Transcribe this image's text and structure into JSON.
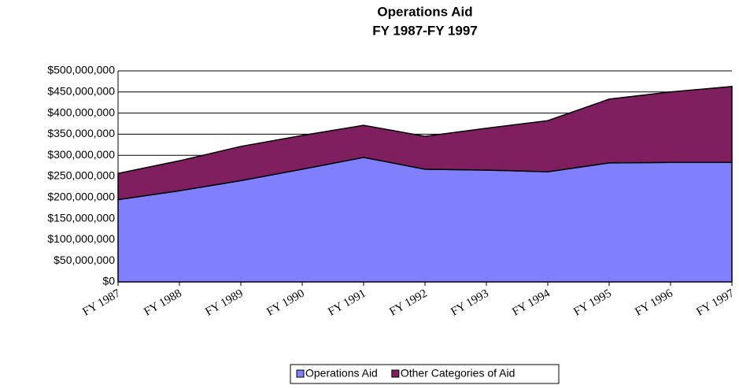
{
  "chart_data": {
    "type": "stacked_area",
    "title": "Operations Aid",
    "subtitle": "FY 1987-FY 1997",
    "categories": [
      "FY  1987",
      "FY  1988",
      "FY  1989",
      "FY  1990",
      "FY  1991",
      "FY  1992",
      "FY  1993",
      "FY  1994",
      "FY  1995",
      "FY  1996",
      "FY  1997"
    ],
    "series": [
      {
        "name": "Operations Aid",
        "color": "#8080ff",
        "values": [
          195000000,
          216000000,
          240000000,
          267000000,
          295000000,
          267000000,
          265000000,
          261000000,
          282000000,
          283000000,
          283000000
        ]
      },
      {
        "name": "Other Categories of Aid",
        "color": "#7f1f5f",
        "values": [
          62000000,
          71000000,
          81000000,
          80000000,
          76000000,
          78000000,
          99000000,
          121000000,
          151000000,
          167000000,
          180000000
        ]
      }
    ],
    "ylim": [
      0,
      500000000
    ],
    "yticks": [
      {
        "value": 0,
        "label": "$0"
      },
      {
        "value": 50000000,
        "label": "$50,000,000"
      },
      {
        "value": 100000000,
        "label": "$100,000,000"
      },
      {
        "value": 150000000,
        "label": "$150,000,000"
      },
      {
        "value": 200000000,
        "label": "$200,000,000"
      },
      {
        "value": 250000000,
        "label": "$250,000,000"
      },
      {
        "value": 300000000,
        "label": "$300,000,000"
      },
      {
        "value": 350000000,
        "label": "$350,000,000"
      },
      {
        "value": 400000000,
        "label": "$400,000,000"
      },
      {
        "value": 450000000,
        "label": "$450,000,000"
      },
      {
        "value": 500000000,
        "label": "$500,000,000"
      }
    ],
    "grid": true,
    "legend": "bottom"
  }
}
